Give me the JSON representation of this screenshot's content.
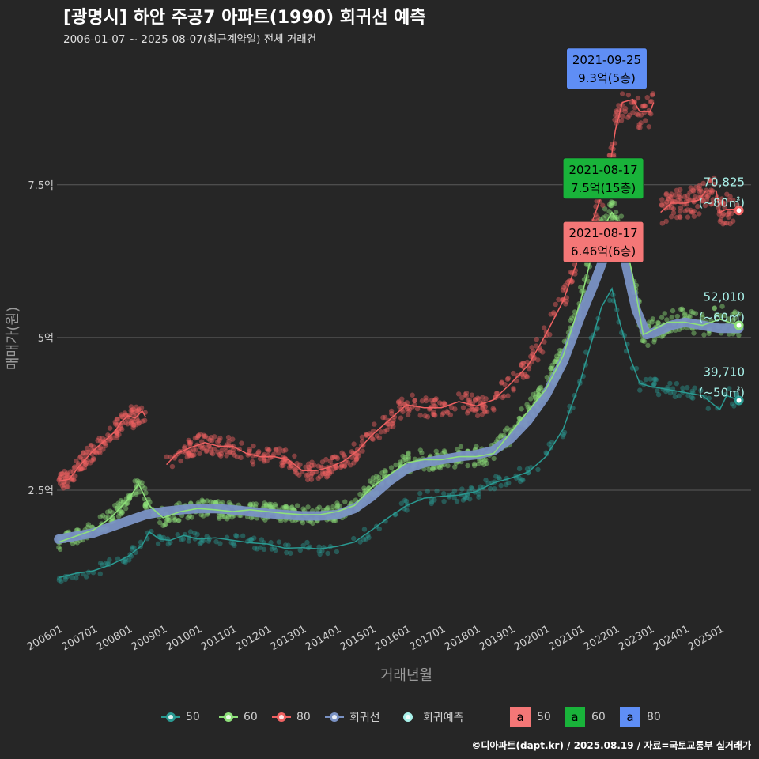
{
  "header": {
    "title": "[광명시] 하안 주공7 아파트(1990) 회귀선 예측",
    "subtitle": "2006-01-07 ~ 2025-08-07(최근계약일) 전체 거래건"
  },
  "caption": "©디아파트(dapt.kr) / 2025.08.19 / 자료=국토교통부 실거래가",
  "colors": {
    "background": "#262626",
    "s50": "#2a9a92",
    "s60": "#8ee07a",
    "s80": "#f06262",
    "regression": "#7a92c4",
    "forecast": "#a9f2ea",
    "box80": "#5f8ef5",
    "box60": "#19b33a",
    "boxRed": "#f47777"
  },
  "chart_data": {
    "type": "line",
    "xlabel": "거래년월",
    "ylabel": "매매가(원)",
    "yticks": [
      {
        "v": 2.5,
        "label": "2.5억"
      },
      {
        "v": 5.0,
        "label": "5억"
      },
      {
        "v": 7.5,
        "label": "7.5억"
      }
    ],
    "xticks": [
      "200601",
      "200701",
      "200801",
      "200901",
      "201001",
      "201101",
      "201201",
      "201301",
      "201401",
      "201501",
      "201601",
      "201701",
      "201801",
      "201901",
      "202001",
      "202101",
      "202201",
      "202301",
      "202401",
      "202501"
    ],
    "xlim": [
      2005.95,
      2025.9
    ],
    "ylim": [
      0.3,
      9.75
    ],
    "series": [
      {
        "name": "50",
        "key": "s50",
        "points": [
          [
            2006.0,
            1.07
          ],
          [
            2006.5,
            1.14
          ],
          [
            2007.0,
            1.18
          ],
          [
            2007.5,
            1.28
          ],
          [
            2008.0,
            1.42
          ],
          [
            2008.4,
            1.6
          ],
          [
            2008.6,
            1.82
          ],
          [
            2008.9,
            1.7
          ],
          [
            2009.2,
            1.68
          ],
          [
            2009.6,
            1.76
          ],
          [
            2010.0,
            1.7
          ],
          [
            2010.5,
            1.72
          ],
          [
            2011.0,
            1.68
          ],
          [
            2011.5,
            1.64
          ],
          [
            2012.0,
            1.62
          ],
          [
            2012.5,
            1.55
          ],
          [
            2013.0,
            1.56
          ],
          [
            2013.5,
            1.54
          ],
          [
            2014.0,
            1.58
          ],
          [
            2014.5,
            1.65
          ],
          [
            2015.0,
            1.85
          ],
          [
            2015.5,
            2.06
          ],
          [
            2016.0,
            2.25
          ],
          [
            2016.5,
            2.37
          ],
          [
            2017.0,
            2.4
          ],
          [
            2017.5,
            2.42
          ],
          [
            2018.0,
            2.48
          ],
          [
            2018.5,
            2.62
          ],
          [
            2019.0,
            2.7
          ],
          [
            2019.5,
            2.8
          ],
          [
            2020.0,
            3.05
          ],
          [
            2020.5,
            3.5
          ],
          [
            2021.0,
            4.3
          ],
          [
            2021.3,
            4.9
          ],
          [
            2021.6,
            5.5
          ],
          [
            2021.9,
            5.8
          ],
          [
            2022.1,
            5.3
          ],
          [
            2022.4,
            4.7
          ],
          [
            2022.7,
            4.25
          ],
          [
            2023.0,
            4.2
          ],
          [
            2023.5,
            4.15
          ],
          [
            2024.0,
            4.1
          ],
          [
            2024.5,
            4.05
          ],
          [
            2025.0,
            3.82
          ],
          [
            2025.2,
            4.05
          ],
          [
            2025.55,
            3.97
          ]
        ]
      },
      {
        "name": "60",
        "key": "s60",
        "points": [
          [
            2006.0,
            1.65
          ],
          [
            2006.5,
            1.75
          ],
          [
            2007.0,
            1.85
          ],
          [
            2007.5,
            2.05
          ],
          [
            2008.0,
            2.35
          ],
          [
            2008.3,
            2.6
          ],
          [
            2008.6,
            2.25
          ],
          [
            2009.0,
            2.05
          ],
          [
            2009.5,
            2.15
          ],
          [
            2010.0,
            2.2
          ],
          [
            2010.5,
            2.18
          ],
          [
            2011.0,
            2.15
          ],
          [
            2011.5,
            2.18
          ],
          [
            2012.0,
            2.15
          ],
          [
            2012.5,
            2.12
          ],
          [
            2013.0,
            2.1
          ],
          [
            2013.5,
            2.1
          ],
          [
            2014.0,
            2.15
          ],
          [
            2014.5,
            2.25
          ],
          [
            2015.0,
            2.55
          ],
          [
            2015.5,
            2.75
          ],
          [
            2016.0,
            2.95
          ],
          [
            2016.5,
            3.0
          ],
          [
            2017.0,
            3.0
          ],
          [
            2017.5,
            3.05
          ],
          [
            2018.0,
            3.05
          ],
          [
            2018.5,
            3.1
          ],
          [
            2019.0,
            3.45
          ],
          [
            2019.5,
            3.8
          ],
          [
            2020.0,
            4.15
          ],
          [
            2020.5,
            4.7
          ],
          [
            2021.0,
            5.6
          ],
          [
            2021.3,
            6.3
          ],
          [
            2021.6,
            6.75
          ],
          [
            2021.9,
            7.05
          ],
          [
            2022.2,
            6.8
          ],
          [
            2022.5,
            6.0
          ],
          [
            2022.8,
            5.05
          ],
          [
            2023.0,
            5.1
          ],
          [
            2023.5,
            5.25
          ],
          [
            2024.0,
            5.25
          ],
          [
            2024.5,
            5.2
          ],
          [
            2025.0,
            5.3
          ],
          [
            2025.55,
            5.2
          ]
        ]
      },
      {
        "name": "80",
        "key": "s80",
        "segments": [
          [
            [
              2006.0,
              2.65
            ],
            [
              2006.3,
              2.68
            ],
            [
              2006.6,
              2.9
            ],
            [
              2007.0,
              3.15
            ],
            [
              2007.3,
              3.3
            ],
            [
              2007.6,
              3.45
            ],
            [
              2007.8,
              3.62
            ],
            [
              2008.0,
              3.72
            ],
            [
              2008.2,
              3.68
            ],
            [
              2008.4,
              3.8
            ],
            [
              2008.5,
              3.7
            ]
          ],
          [
            [
              2009.1,
              2.92
            ],
            [
              2009.4,
              3.1
            ],
            [
              2009.8,
              3.2
            ],
            [
              2010.2,
              3.28
            ],
            [
              2010.6,
              3.22
            ],
            [
              2011.0,
              3.22
            ],
            [
              2011.4,
              3.1
            ],
            [
              2011.8,
              3.05
            ],
            [
              2012.2,
              3.05
            ],
            [
              2012.6,
              3.0
            ],
            [
              2013.0,
              2.82
            ],
            [
              2013.4,
              2.82
            ],
            [
              2013.8,
              2.88
            ],
            [
              2014.2,
              2.98
            ],
            [
              2014.6,
              3.15
            ],
            [
              2015.0,
              3.4
            ],
            [
              2015.5,
              3.65
            ],
            [
              2016.0,
              3.9
            ],
            [
              2016.5,
              3.85
            ],
            [
              2017.0,
              3.85
            ],
            [
              2017.5,
              3.95
            ],
            [
              2018.0,
              3.88
            ],
            [
              2018.5,
              3.98
            ],
            [
              2019.0,
              4.25
            ],
            [
              2019.5,
              4.55
            ],
            [
              2020.0,
              5.05
            ],
            [
              2020.5,
              5.6
            ],
            [
              2021.0,
              6.4
            ],
            [
              2021.4,
              7.0
            ],
            [
              2021.8,
              7.65
            ],
            [
              2022.0,
              8.4
            ],
            [
              2022.2,
              8.85
            ],
            [
              2022.5,
              8.9
            ],
            [
              2022.7,
              8.7
            ],
            [
              2023.0,
              8.7
            ],
            [
              2023.1,
              8.85
            ]
          ],
          [
            [
              2023.3,
              7.05
            ],
            [
              2023.6,
              7.2
            ],
            [
              2024.0,
              7.2
            ],
            [
              2024.4,
              7.25
            ],
            [
              2024.6,
              7.4
            ],
            [
              2024.9,
              7.4
            ],
            [
              2025.0,
              7.05
            ],
            [
              2025.2,
              7.1
            ],
            [
              2025.55,
              7.1
            ]
          ]
        ],
        "trend": [
          [
            2017.5,
            3.95
          ],
          [
            2018.0,
            3.9
          ],
          [
            2018.5,
            4.0
          ],
          [
            2019.0,
            4.2
          ],
          [
            2019.5,
            4.35
          ],
          [
            2020.0,
            4.7
          ],
          [
            2020.5,
            5.4
          ],
          [
            2021.0,
            6.2
          ],
          [
            2021.5,
            6.9
          ],
          [
            2021.8,
            7.1
          ],
          [
            2022.1,
            6.6
          ],
          [
            2022.3,
            6.4
          ]
        ]
      },
      {
        "name": "회귀선",
        "key": "regression",
        "points": [
          [
            2006.0,
            1.7
          ],
          [
            2006.5,
            1.75
          ],
          [
            2007.0,
            1.8
          ],
          [
            2007.5,
            1.9
          ],
          [
            2008.0,
            2.0
          ],
          [
            2008.5,
            2.1
          ],
          [
            2009.0,
            2.15
          ],
          [
            2009.5,
            2.18
          ],
          [
            2010.0,
            2.2
          ],
          [
            2010.5,
            2.2
          ],
          [
            2011.0,
            2.18
          ],
          [
            2011.5,
            2.15
          ],
          [
            2012.0,
            2.12
          ],
          [
            2012.5,
            2.1
          ],
          [
            2013.0,
            2.08
          ],
          [
            2013.5,
            2.08
          ],
          [
            2014.0,
            2.1
          ],
          [
            2014.5,
            2.2
          ],
          [
            2015.0,
            2.4
          ],
          [
            2015.5,
            2.65
          ],
          [
            2016.0,
            2.85
          ],
          [
            2016.5,
            2.95
          ],
          [
            2017.0,
            3.0
          ],
          [
            2017.5,
            3.05
          ],
          [
            2018.0,
            3.08
          ],
          [
            2018.5,
            3.15
          ],
          [
            2019.0,
            3.35
          ],
          [
            2019.5,
            3.65
          ],
          [
            2020.0,
            4.05
          ],
          [
            2020.5,
            4.6
          ],
          [
            2021.0,
            5.35
          ],
          [
            2021.4,
            5.9
          ],
          [
            2021.7,
            6.35
          ],
          [
            2021.9,
            6.6
          ],
          [
            2022.1,
            6.7
          ],
          [
            2022.3,
            6.2
          ],
          [
            2022.6,
            5.45
          ],
          [
            2022.9,
            5.05
          ],
          [
            2023.2,
            5.1
          ],
          [
            2023.6,
            5.2
          ],
          [
            2024.0,
            5.25
          ],
          [
            2024.5,
            5.2
          ],
          [
            2025.0,
            5.15
          ],
          [
            2025.55,
            5.15
          ]
        ]
      }
    ],
    "forecast": [
      {
        "key": "s50",
        "x": 2025.55,
        "y": 3.97,
        "label": "39,710",
        "sub": "(~50㎡)"
      },
      {
        "key": "s60",
        "x": 2025.55,
        "y": 5.2,
        "label": "52,010",
        "sub": "(~60㎡)"
      },
      {
        "key": "s80",
        "x": 2025.55,
        "y": 7.08,
        "label": "70,825",
        "sub": "(~80㎡)"
      }
    ],
    "max_labels": [
      {
        "date": "2021-09-25",
        "text": "9.3억(5층)",
        "color_key": "box80",
        "x": 2021.73,
        "y": 9.3
      },
      {
        "date": "2021-08-17",
        "text": "7.5억(15층)",
        "color_key": "box60",
        "x": 2021.63,
        "y": 7.5
      },
      {
        "date": "2021-08-17",
        "text": "6.46억(6층)",
        "color_key": "boxRed",
        "x": 2021.63,
        "y": 6.46
      }
    ],
    "legend": [
      {
        "label": "50",
        "key": "s50",
        "kind": "line"
      },
      {
        "label": "60",
        "key": "s60",
        "kind": "line"
      },
      {
        "label": "80",
        "key": "s80",
        "kind": "line"
      },
      {
        "label": "회귀선",
        "key": "regression",
        "kind": "line"
      },
      {
        "label": "회귀예측",
        "key": "forecast",
        "kind": "dot"
      },
      {
        "label": "50",
        "key": "boxRed",
        "kind": "box",
        "glyph": "a"
      },
      {
        "label": "60",
        "key": "box60",
        "kind": "box",
        "glyph": "a"
      },
      {
        "label": "80",
        "key": "box80",
        "kind": "box",
        "glyph": "a"
      }
    ]
  }
}
